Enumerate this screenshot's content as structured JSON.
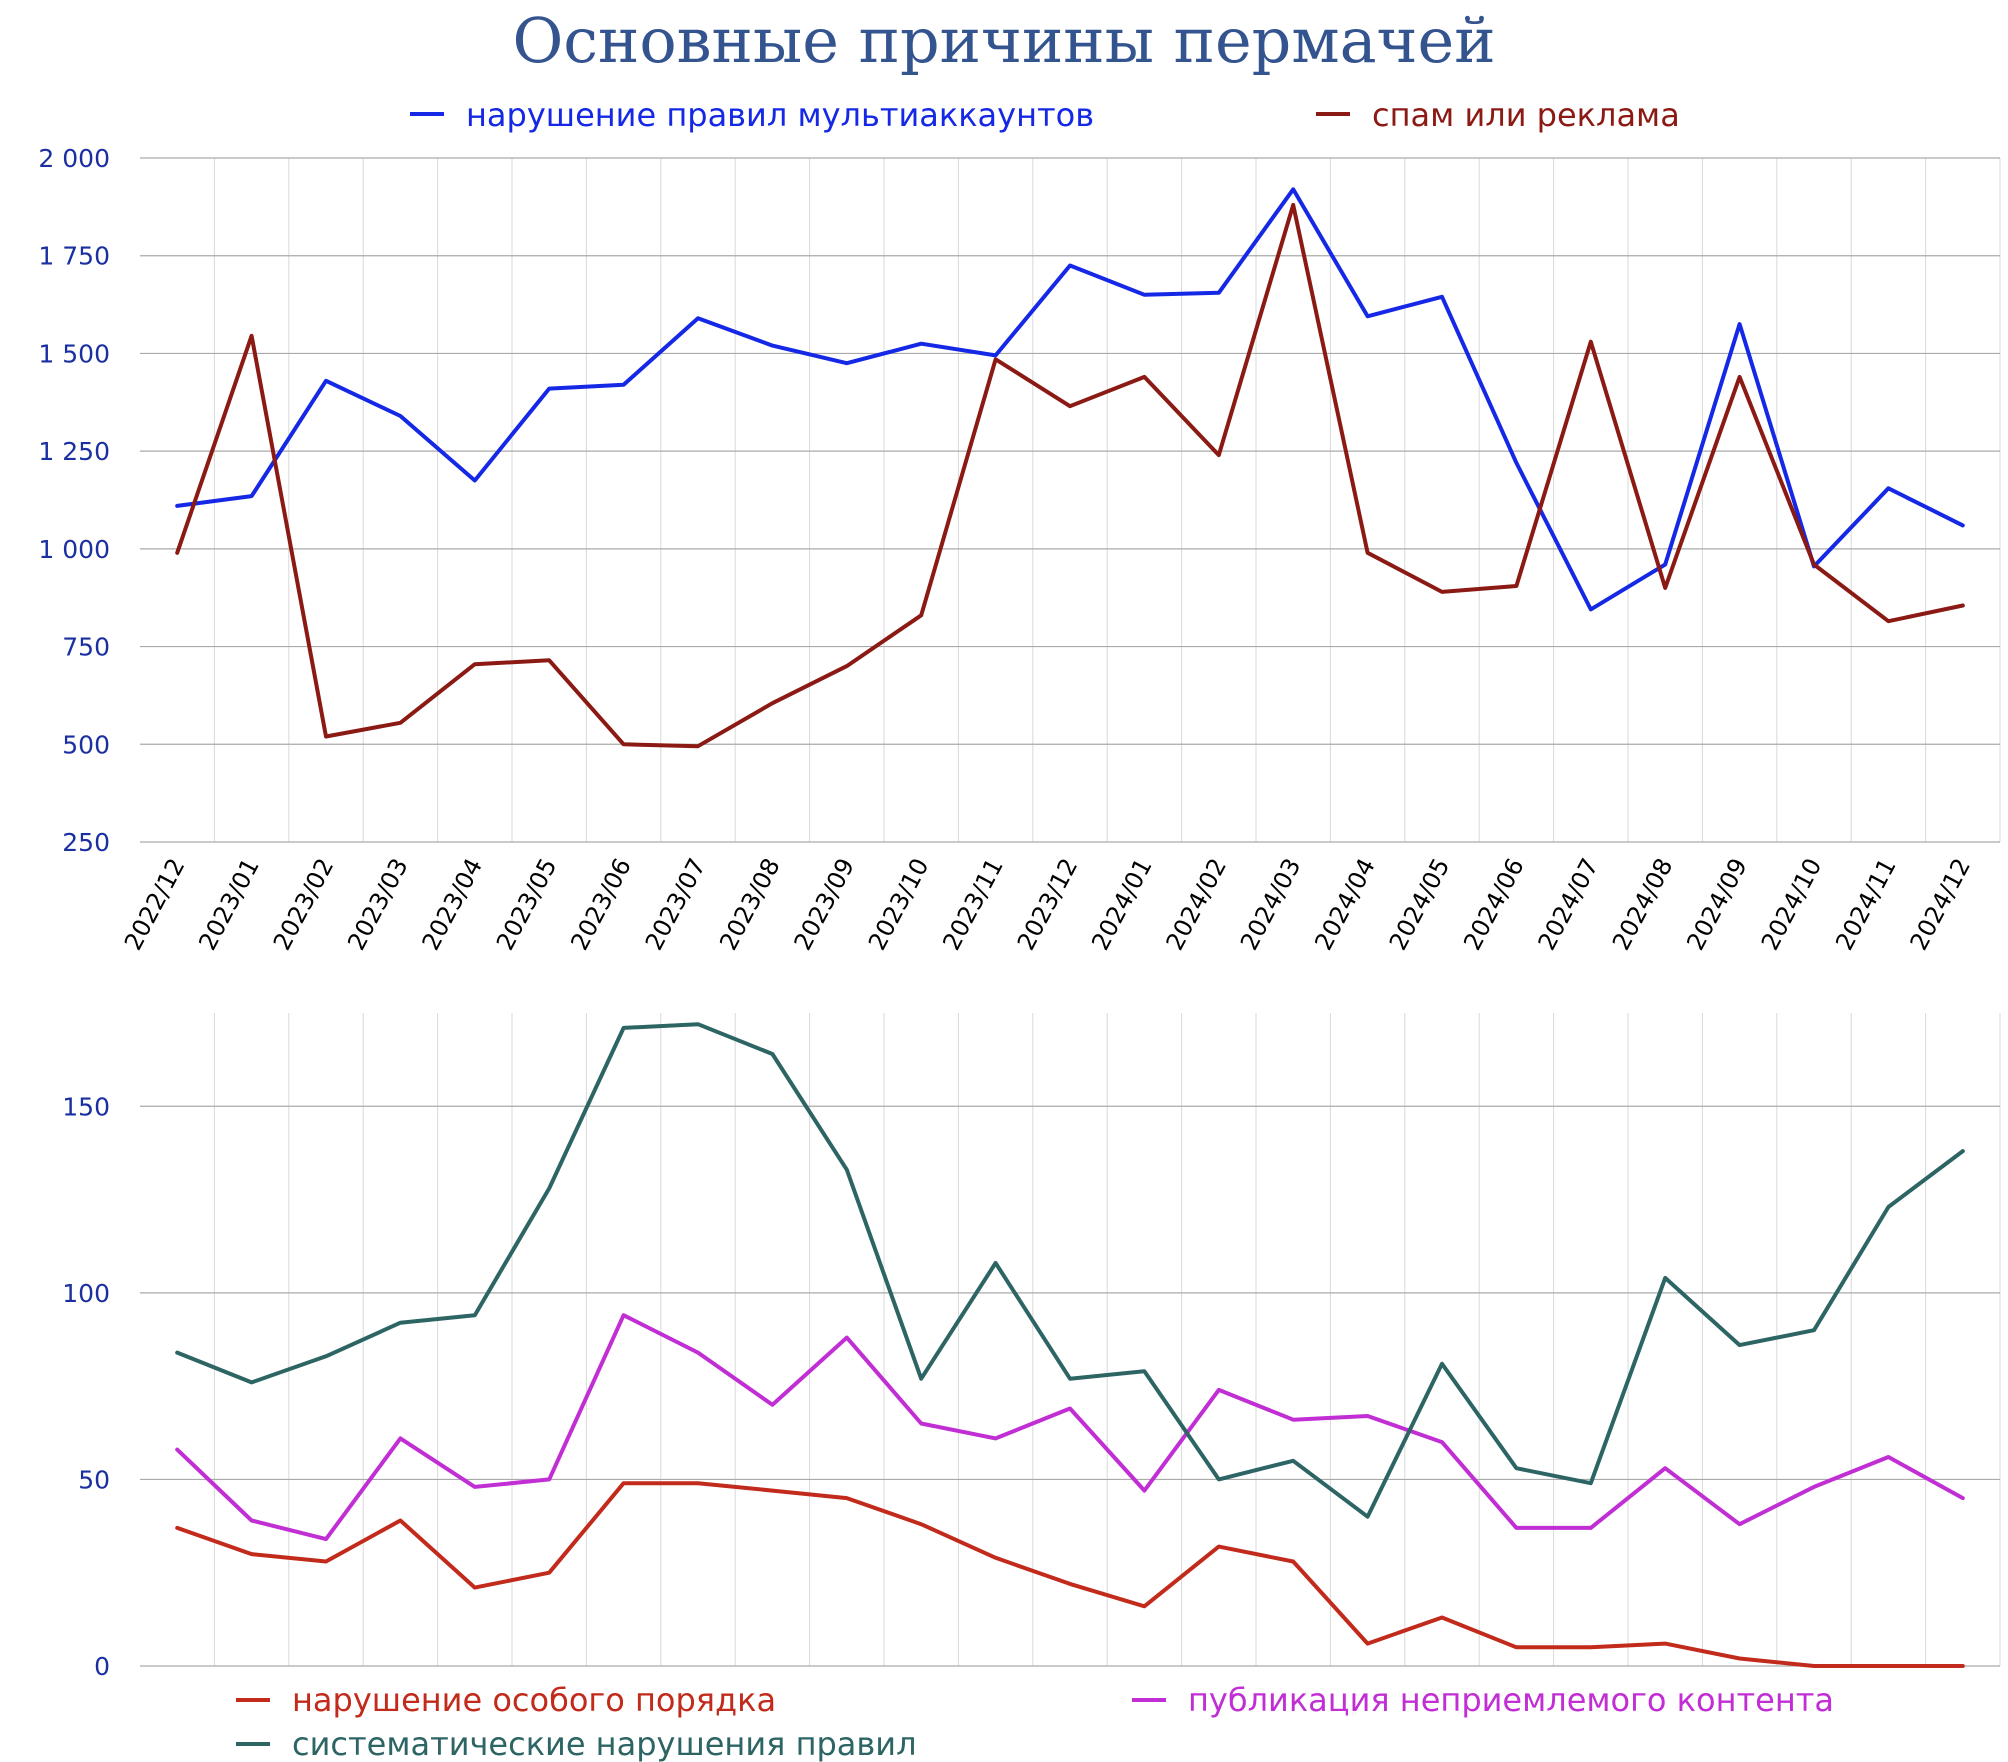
{
  "title": "Основные причины пермачей",
  "colors": {
    "blue": "#1428e6",
    "maroon": "#8b1a14",
    "red": "#c22a1c",
    "magenta": "#c02ed4",
    "teal": "#2d6464",
    "title": "#34548f",
    "tick": "#1a2fa0"
  },
  "chart_data": [
    {
      "type": "line",
      "categories": [
        "2022/12",
        "2023/01",
        "2023/02",
        "2023/03",
        "2023/04",
        "2023/05",
        "2023/06",
        "2023/07",
        "2023/08",
        "2023/09",
        "2023/10",
        "2023/11",
        "2023/12",
        "2024/01",
        "2024/02",
        "2024/03",
        "2024/04",
        "2024/05",
        "2024/06",
        "2024/07",
        "2024/08",
        "2024/09",
        "2024/10",
        "2024/11",
        "2024/12"
      ],
      "ylim": [
        250,
        2000
      ],
      "yticks": [
        250,
        500,
        750,
        1000,
        1250,
        1500,
        1750,
        2000
      ],
      "ytick_labels": [
        "250",
        "500",
        "750",
        "1 000",
        "1 250",
        "1 500",
        "1 750",
        "2 000"
      ],
      "legend_position": "top",
      "series": [
        {
          "name": "нарушение правил мультиаккаунтов",
          "color": "#1428e6",
          "values": [
            1110,
            1135,
            1430,
            1340,
            1175,
            1410,
            1420,
            1590,
            1520,
            1475,
            1525,
            1495,
            1725,
            1650,
            1655,
            1920,
            1595,
            1645,
            1220,
            845,
            960,
            1575,
            955,
            1155,
            1060
          ]
        },
        {
          "name": "спам или реклама",
          "color": "#8b1a14",
          "values": [
            990,
            1545,
            520,
            555,
            705,
            715,
            500,
            495,
            605,
            700,
            830,
            1485,
            1365,
            1440,
            1240,
            1880,
            990,
            890,
            905,
            1530,
            900,
            1440,
            960,
            815,
            855
          ]
        }
      ]
    },
    {
      "type": "line",
      "categories": [
        "2022/12",
        "2023/01",
        "2023/02",
        "2023/03",
        "2023/04",
        "2023/05",
        "2023/06",
        "2023/07",
        "2023/08",
        "2023/09",
        "2023/10",
        "2023/11",
        "2023/12",
        "2024/01",
        "2024/02",
        "2024/03",
        "2024/04",
        "2024/05",
        "2024/06",
        "2024/07",
        "2024/08",
        "2024/09",
        "2024/10",
        "2024/11",
        "2024/12"
      ],
      "ylim": [
        0,
        175
      ],
      "yticks": [
        0,
        50,
        100,
        150
      ],
      "ytick_labels": [
        "0",
        "50",
        "100",
        "150"
      ],
      "legend_position": "bottom",
      "series": [
        {
          "name": "нарушение особого порядка",
          "color": "#c22a1c",
          "values": [
            37,
            30,
            28,
            39,
            21,
            25,
            49,
            49,
            47,
            45,
            38,
            29,
            22,
            16,
            32,
            28,
            6,
            13,
            5,
            5,
            6,
            2,
            0,
            0,
            0
          ]
        },
        {
          "name": "публикация неприемлемого контента",
          "color": "#c02ed4",
          "values": [
            58,
            39,
            34,
            61,
            48,
            50,
            94,
            84,
            70,
            88,
            65,
            61,
            69,
            47,
            74,
            66,
            67,
            60,
            37,
            37,
            53,
            38,
            48,
            56,
            45
          ]
        },
        {
          "name": "систематические нарушения правил",
          "color": "#2d6464",
          "values": [
            84,
            76,
            83,
            92,
            94,
            128,
            171,
            172,
            164,
            133,
            77,
            108,
            77,
            79,
            50,
            55,
            40,
            81,
            53,
            49,
            104,
            86,
            90,
            123,
            138
          ]
        }
      ]
    }
  ]
}
